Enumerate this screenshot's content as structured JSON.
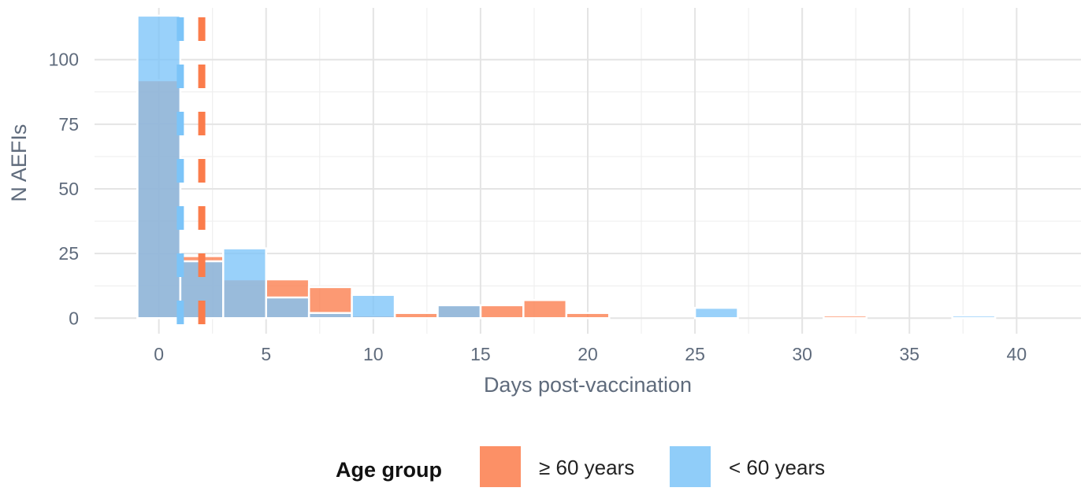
{
  "chart_data": {
    "type": "bar",
    "subtype": "overlapping-histogram",
    "xlabel": "Days post-vaccination",
    "ylabel": "N AEFIs",
    "xlim": [
      -3,
      43
    ],
    "ylim": [
      -6,
      120
    ],
    "x_ticks": [
      0,
      5,
      10,
      15,
      20,
      25,
      30,
      35,
      40
    ],
    "y_ticks": [
      0,
      25,
      50,
      75,
      100
    ],
    "bin_width": 2,
    "bin_centers": [
      0,
      2,
      4,
      6,
      8,
      10,
      12,
      14,
      16,
      18,
      20,
      22,
      24,
      26,
      28,
      30,
      32,
      34,
      36,
      38,
      40
    ],
    "series": [
      {
        "name": "≥ 60 years",
        "color": "#fb7c4b",
        "values": [
          92,
          24,
          15,
          15,
          12,
          1,
          2,
          5,
          5,
          7,
          2,
          0,
          0,
          0,
          0,
          0,
          1,
          0,
          0,
          0,
          0
        ],
        "median": 2
      },
      {
        "name": "< 60 years",
        "color": "#7cc4f8",
        "values": [
          117,
          22,
          27,
          8,
          2,
          9,
          0,
          5,
          0,
          0,
          0,
          0,
          0,
          4,
          0,
          0,
          0,
          0,
          0,
          1,
          0
        ],
        "median": 1
      }
    ],
    "grid": true,
    "legend": {
      "title": "Age group",
      "position": "bottom"
    }
  }
}
